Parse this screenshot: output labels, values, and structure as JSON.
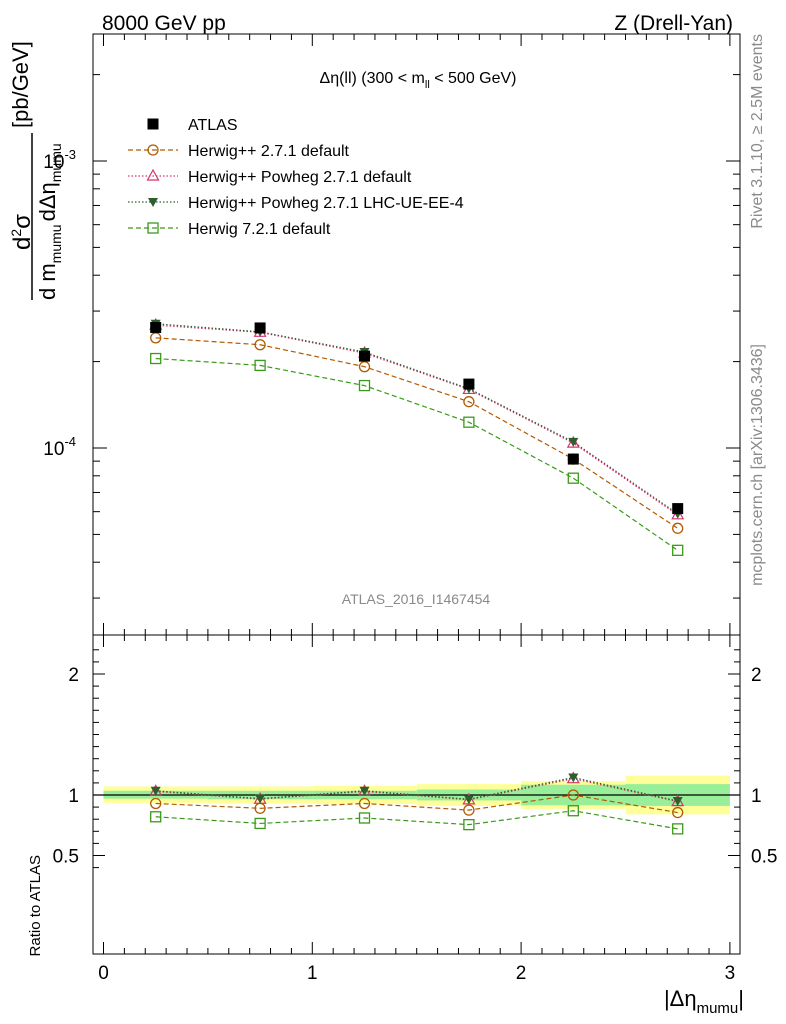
{
  "header": {
    "left": "8000 GeV pp",
    "right": "Z (Drell-Yan)"
  },
  "side_labels": {
    "rivet": "Rivet 3.1.10, ≥ 2.5M events",
    "mcplots": "mcplots.cern.ch [arXiv:1306.3436]"
  },
  "chart_data": [
    {
      "type": "scatter",
      "title": "Δη(ll) (300 < m_ll < 500 GeV)",
      "analysis_label": "ATLAS_2016_I1467454",
      "ylabel": "d²σ / d m_mumu dΔη_mumu [pb/GeV]",
      "xlabel": "|Δη_mumu|",
      "y_scale": "log",
      "xlim": [
        0,
        3
      ],
      "ylim": [
        3e-05,
        0.003
      ],
      "x_ticks": [
        "0",
        "1",
        "2",
        "3"
      ],
      "y_ticks": [
        "10^-4",
        "10^-3"
      ],
      "x": [
        0.25,
        0.75,
        1.25,
        1.75,
        2.25,
        2.75
      ],
      "series": [
        {
          "name": "ATLAS",
          "color": "#000000",
          "marker": "square-filled",
          "line": "none",
          "values": [
            0.000263,
            0.000262,
            0.000209,
            0.000167,
            9.15e-05,
            6.15e-05
          ]
        },
        {
          "name": "Herwig++ 2.7.1 default",
          "color": "#b25a00",
          "marker": "circle-open",
          "line": "dashed",
          "values": [
            0.000242,
            0.000229,
            0.000192,
            0.000145,
            9.15e-05,
            5.25e-05
          ]
        },
        {
          "name": "Herwig++ Powheg 2.7.1 default",
          "color": "#d6336c",
          "marker": "triangle-up-open",
          "line": "dotted",
          "values": [
            0.000268,
            0.000253,
            0.000214,
            0.00016,
            0.000104,
            5.85e-05
          ]
        },
        {
          "name": "Herwig++ Powheg 2.7.1 LHC-UE-EE-4",
          "color": "#2e5e2e",
          "marker": "triangle-down-filled",
          "line": "dotted",
          "values": [
            0.000271,
            0.000254,
            0.000216,
            0.000161,
            0.000105,
            5.9e-05
          ]
        },
        {
          "name": "Herwig 7.2.1 default",
          "color": "#3a9a1a",
          "marker": "square-open",
          "line": "dashed",
          "values": [
            0.000205,
            0.000194,
            0.000165,
            0.000123,
            7.85e-05,
            4.4e-05
          ]
        }
      ]
    },
    {
      "type": "scatter",
      "ylabel": "Ratio to ATLAS",
      "xlabel": "|Δη_mumu|",
      "xlim": [
        0,
        3
      ],
      "ylim": [
        0.35,
        2.3
      ],
      "x_ticks": [
        "0",
        "1",
        "2",
        "3"
      ],
      "y_ticks": [
        "0.5",
        "1",
        "2"
      ],
      "x": [
        0.25,
        0.75,
        1.25,
        1.75,
        2.25,
        2.75
      ],
      "bin_edges": [
        0,
        0.5,
        1,
        1.5,
        2,
        2.5,
        3
      ],
      "bands": {
        "stat_green": {
          "color": "#99ee99",
          "lo": [
            0.97,
            0.965,
            0.965,
            0.955,
            0.915,
            0.91
          ],
          "hi": [
            1.035,
            1.035,
            1.035,
            1.045,
            1.085,
            1.09
          ]
        },
        "total_yellow": {
          "color": "#ffff99",
          "lo": [
            0.935,
            0.93,
            0.925,
            0.91,
            0.885,
            0.84
          ],
          "hi": [
            1.07,
            1.07,
            1.075,
            1.09,
            1.115,
            1.16
          ]
        }
      },
      "series": [
        {
          "name": "Herwig++ 2.7.1 default",
          "color": "#b25a00",
          "marker": "circle-open",
          "line": "dashed",
          "values": [
            0.93,
            0.89,
            0.93,
            0.875,
            1.0,
            0.855
          ]
        },
        {
          "name": "Herwig++ Powheg 2.7.1 default",
          "color": "#d6336c",
          "marker": "triangle-up-open",
          "line": "dotted",
          "values": [
            1.03,
            0.965,
            1.03,
            0.96,
            1.135,
            0.945
          ]
        },
        {
          "name": "Herwig++ Powheg 2.7.1 LHC-UE-EE-4",
          "color": "#2e5e2e",
          "marker": "triangle-down-filled",
          "line": "dotted",
          "values": [
            1.035,
            0.97,
            1.035,
            0.965,
            1.145,
            0.95
          ]
        },
        {
          "name": "Herwig 7.2.1 default",
          "color": "#3a9a1a",
          "marker": "square-open",
          "line": "dashed",
          "values": [
            0.82,
            0.765,
            0.81,
            0.755,
            0.87,
            0.72
          ]
        }
      ]
    }
  ]
}
